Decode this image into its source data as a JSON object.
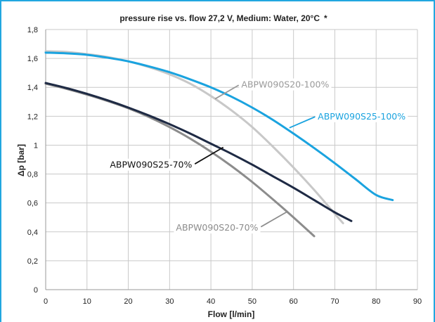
{
  "chart_data": {
    "type": "line",
    "title": "pressure rise vs. flow 27,2 V, Medium: Water, 20°C",
    "title_mark": "*",
    "xlabel": "Flow [l/min]",
    "ylabel": "Δp [bar]",
    "xlim": [
      0,
      90
    ],
    "ylim": [
      0,
      1.8
    ],
    "xticks": [
      "0",
      "10",
      "20",
      "30",
      "40",
      "50",
      "60",
      "70",
      "80",
      "90"
    ],
    "yticks": [
      "0",
      "0,2",
      "0,4",
      "0,6",
      "0,8",
      "1",
      "1,2",
      "1,4",
      "1,6",
      "1,8"
    ],
    "grid": true,
    "series": [
      {
        "name": "ABPW090S25-100%",
        "color": "#1aa3df",
        "x": [
          0,
          5,
          10,
          15,
          20,
          25,
          30,
          35,
          40,
          45,
          50,
          55,
          60,
          65,
          70,
          75,
          80,
          84
        ],
        "y": [
          1.64,
          1.635,
          1.625,
          1.605,
          1.58,
          1.545,
          1.505,
          1.455,
          1.4,
          1.335,
          1.26,
          1.175,
          1.08,
          0.98,
          0.875,
          0.765,
          0.655,
          0.62
        ]
      },
      {
        "name": "ABPW090S20-100%",
        "color": "#c8c8c8",
        "x": [
          0,
          5,
          10,
          15,
          20,
          25,
          30,
          35,
          40,
          45,
          50,
          55,
          60,
          65,
          70,
          72
        ],
        "y": [
          1.65,
          1.645,
          1.63,
          1.61,
          1.58,
          1.54,
          1.49,
          1.425,
          1.34,
          1.24,
          1.125,
          0.99,
          0.845,
          0.69,
          0.525,
          0.46
        ]
      },
      {
        "name": "ABPW090S25-70%",
        "color": "#1e2a44",
        "x": [
          0,
          5,
          10,
          15,
          20,
          25,
          30,
          35,
          40,
          45,
          50,
          55,
          60,
          65,
          70,
          74
        ],
        "y": [
          1.43,
          1.395,
          1.355,
          1.31,
          1.26,
          1.205,
          1.145,
          1.08,
          1.01,
          0.94,
          0.865,
          0.785,
          0.705,
          0.62,
          0.535,
          0.475
        ]
      },
      {
        "name": "ABPW090S20-70%",
        "color": "#8c8c8c",
        "x": [
          0,
          5,
          10,
          15,
          20,
          25,
          30,
          35,
          40,
          45,
          50,
          55,
          60,
          65
        ],
        "y": [
          1.425,
          1.39,
          1.35,
          1.305,
          1.255,
          1.195,
          1.125,
          1.045,
          0.955,
          0.855,
          0.745,
          0.625,
          0.5,
          0.37
        ]
      }
    ],
    "annotations": [
      {
        "series": 1,
        "text": "ABPW090S20-100%",
        "color": "#9a9a9a",
        "label_x": 58,
        "label_y": 1.42,
        "point_x": 41,
        "point_y": 1.32,
        "anchor": "middle"
      },
      {
        "series": 0,
        "text": "ABPW090S25-100%",
        "color": "#1aa3df",
        "label_x": 76.5,
        "label_y": 1.2,
        "point_x": 59,
        "point_y": 1.12,
        "anchor": "middle"
      },
      {
        "series": 2,
        "text": "ABPW090S25-70%",
        "color": "#111111",
        "label_x": 25.5,
        "label_y": 0.865,
        "point_x": 43,
        "point_y": 0.985,
        "anchor": "middle"
      },
      {
        "series": 3,
        "text": "ABPW090S20-70%",
        "color": "#8c8c8c",
        "label_x": 41.5,
        "label_y": 0.43,
        "point_x": 58.5,
        "point_y": 0.54,
        "anchor": "middle"
      }
    ]
  }
}
